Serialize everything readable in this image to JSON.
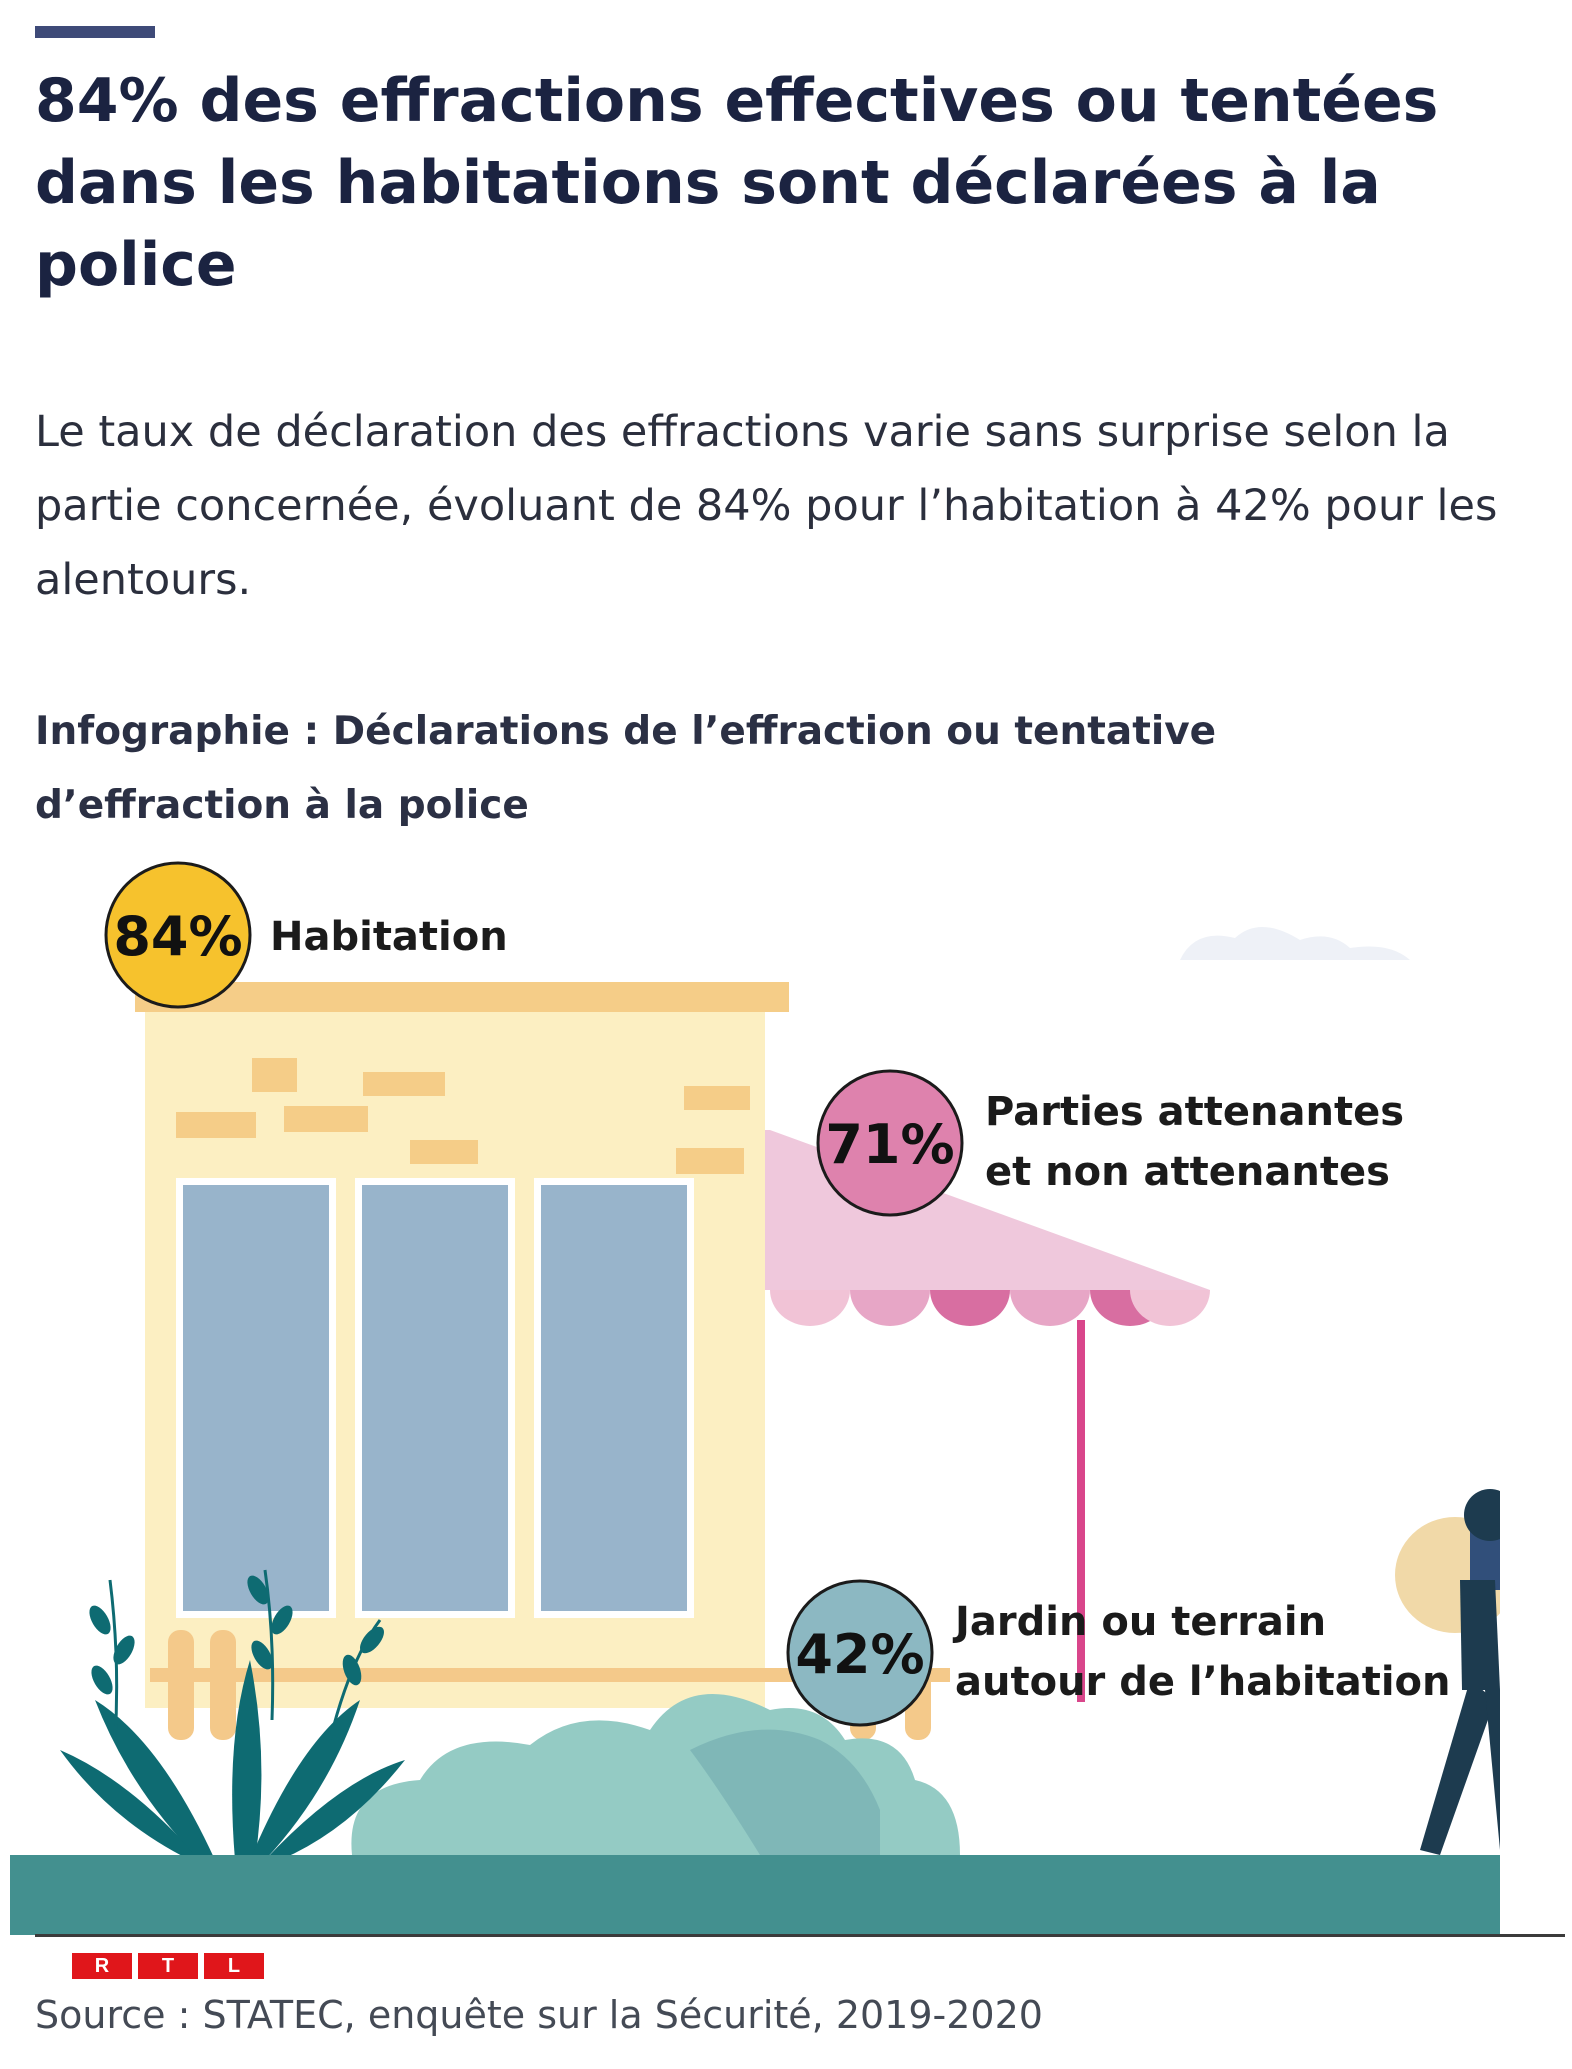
{
  "header": {
    "title": "84% des effractions effectives ou tentées dans les habitations sont déclarées à la police",
    "lede": "Le taux de déclaration des effractions varie sans surprise selon la partie concernée, évoluant de 84% pour l’habitation à 42% pour les alentours."
  },
  "chart_data": {
    "type": "infographic",
    "title": "Infographie : Déclarations de l’effraction ou tentative d’effraction à la police",
    "categories": [
      "Habitation",
      "Parties attenantes et non attenantes",
      "Jardin ou terrain autour de l’habitation"
    ],
    "values": [
      84,
      71,
      42
    ],
    "value_labels": [
      "84%",
      "71%",
      "42%"
    ],
    "label_lines": [
      [
        "Habitation"
      ],
      [
        "Parties attenantes",
        "et non attenantes"
      ],
      [
        "Jardin ou terrain",
        "autour de l’habitation"
      ]
    ],
    "colors": [
      "#f6c22d",
      "#de82ad",
      "#8cb8c2"
    ],
    "unit": "%"
  },
  "footer": {
    "logo_letters": [
      "R",
      "T",
      "L"
    ],
    "source": "Source : STATEC, enquête sur la Sécurité, 2019-2020"
  },
  "palette": {
    "title": "#1b2341",
    "wall": "#fcefc2",
    "roof": "#f5cd88",
    "window": "#98b4cb",
    "awning": "#eec7dc",
    "pole": "#d9468b",
    "bush": "#94cbc4",
    "plant": "#0e6b72",
    "ground": "#43908f",
    "thief": "#1d3b4f",
    "bag": "#f1d9a8",
    "logo": "#e0161b"
  }
}
